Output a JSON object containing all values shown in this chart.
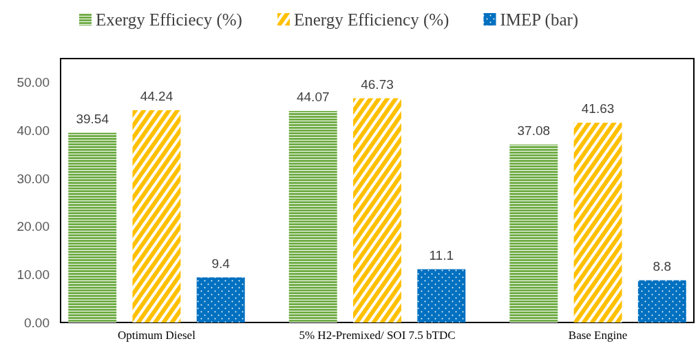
{
  "chart_data": {
    "type": "bar",
    "categories": [
      "Optimum Diesel",
      "5% H2-Premixed/ SOI 7.5 bTDC",
      "Base Engine"
    ],
    "series": [
      {
        "name": "Exergy Efficiecy (%)",
        "color": "#70ad47",
        "values": [
          39.54,
          44.07,
          37.08
        ]
      },
      {
        "name": "Energy Efficiency (%)",
        "color": "#ffc000",
        "values": [
          44.24,
          46.73,
          41.63
        ]
      },
      {
        "name": "IMEP (bar)",
        "color": "#0070c0",
        "values": [
          9.4,
          11.1,
          8.8
        ]
      }
    ],
    "ylim": [
      0,
      55
    ],
    "yticks": [
      {
        "value": 0,
        "label": "0.00"
      },
      {
        "value": 10,
        "label": "10.00"
      },
      {
        "value": 20,
        "label": "20.00"
      },
      {
        "value": 30,
        "label": "30.00"
      },
      {
        "value": 40,
        "label": "40.00"
      },
      {
        "value": 50,
        "label": "50.00"
      }
    ],
    "grid": false,
    "legend": "top",
    "data_labels": true
  }
}
